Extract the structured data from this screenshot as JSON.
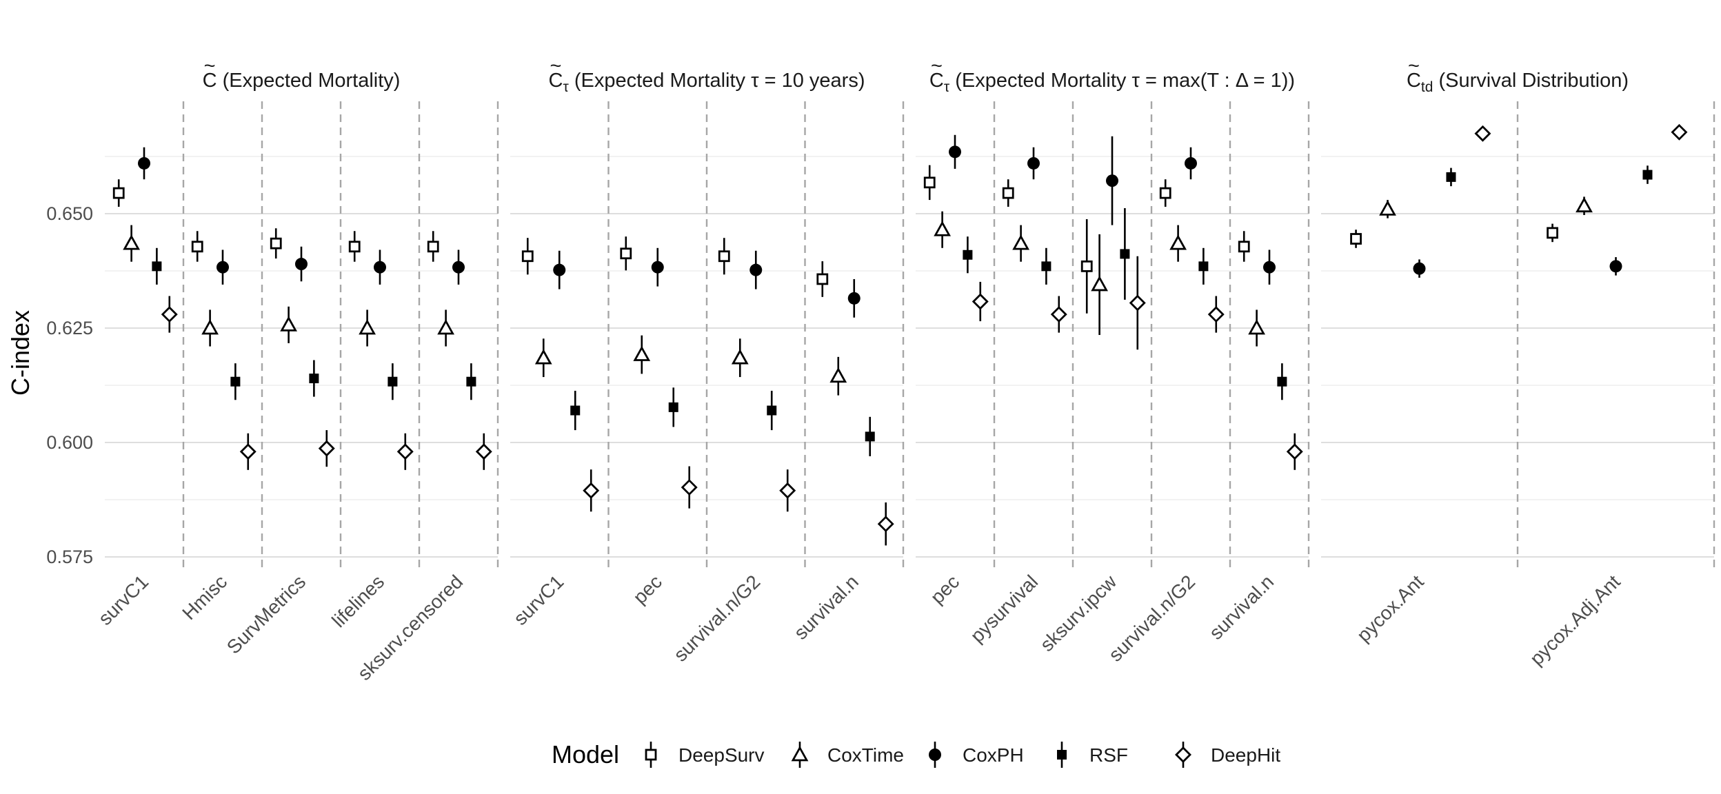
{
  "chart_data": {
    "type": "scatter",
    "ylabel": "C-index",
    "ylim": [
      0.572,
      0.672
    ],
    "yticks": [
      0.575,
      0.6,
      0.625,
      0.65
    ],
    "ytick_labels": [
      "0.575",
      "0.600",
      "0.625",
      "0.650"
    ],
    "grid": true,
    "legend": {
      "title": "Model",
      "position": "bottom",
      "entries": [
        "DeepSurv",
        "CoxTime",
        "CoxPH",
        "RSF",
        "DeepHit"
      ]
    },
    "models": [
      {
        "name": "DeepSurv",
        "marker": "square-open"
      },
      {
        "name": "CoxTime",
        "marker": "triangle-open"
      },
      {
        "name": "CoxPH",
        "marker": "circle-filled"
      },
      {
        "name": "RSF",
        "marker": "square-filled"
      },
      {
        "name": "DeepHit",
        "marker": "diamond-open"
      }
    ],
    "facets": [
      {
        "title_main": "C",
        "title_sub": "",
        "title_rest": " (Expected Mortality)",
        "groups": [
          {
            "label": "survC1",
            "points": [
              {
                "model": "DeepSurv",
                "y": 0.6545,
                "lo": 0.6515,
                "hi": 0.6575
              },
              {
                "model": "CoxTime",
                "y": 0.6435,
                "lo": 0.6395,
                "hi": 0.6475
              },
              {
                "model": "CoxPH",
                "y": 0.661,
                "lo": 0.6575,
                "hi": 0.6645
              },
              {
                "model": "RSF",
                "y": 0.6385,
                "lo": 0.6345,
                "hi": 0.6425
              },
              {
                "model": "DeepHit",
                "y": 0.628,
                "lo": 0.624,
                "hi": 0.632
              }
            ]
          },
          {
            "label": "Hmisc",
            "points": [
              {
                "model": "DeepSurv",
                "y": 0.6428,
                "lo": 0.6395,
                "hi": 0.6462
              },
              {
                "model": "CoxTime",
                "y": 0.625,
                "lo": 0.621,
                "hi": 0.629
              },
              {
                "model": "CoxPH",
                "y": 0.6383,
                "lo": 0.6345,
                "hi": 0.6421
              },
              {
                "model": "RSF",
                "y": 0.6133,
                "lo": 0.6093,
                "hi": 0.6173
              },
              {
                "model": "DeepHit",
                "y": 0.598,
                "lo": 0.594,
                "hi": 0.602
              }
            ]
          },
          {
            "label": "SurvMetrics",
            "points": [
              {
                "model": "DeepSurv",
                "y": 0.6435,
                "lo": 0.6402,
                "hi": 0.6468
              },
              {
                "model": "CoxTime",
                "y": 0.6257,
                "lo": 0.6217,
                "hi": 0.6297
              },
              {
                "model": "CoxPH",
                "y": 0.639,
                "lo": 0.6352,
                "hi": 0.6428
              },
              {
                "model": "RSF",
                "y": 0.614,
                "lo": 0.61,
                "hi": 0.618
              },
              {
                "model": "DeepHit",
                "y": 0.5987,
                "lo": 0.5947,
                "hi": 0.6027
              }
            ]
          },
          {
            "label": "lifelines",
            "points": [
              {
                "model": "DeepSurv",
                "y": 0.6428,
                "lo": 0.6395,
                "hi": 0.6462
              },
              {
                "model": "CoxTime",
                "y": 0.625,
                "lo": 0.621,
                "hi": 0.629
              },
              {
                "model": "CoxPH",
                "y": 0.6383,
                "lo": 0.6345,
                "hi": 0.6421
              },
              {
                "model": "RSF",
                "y": 0.6133,
                "lo": 0.6093,
                "hi": 0.6173
              },
              {
                "model": "DeepHit",
                "y": 0.598,
                "lo": 0.594,
                "hi": 0.602
              }
            ]
          },
          {
            "label": "sksurv.censored",
            "points": [
              {
                "model": "DeepSurv",
                "y": 0.6428,
                "lo": 0.6395,
                "hi": 0.6462
              },
              {
                "model": "CoxTime",
                "y": 0.625,
                "lo": 0.621,
                "hi": 0.629
              },
              {
                "model": "CoxPH",
                "y": 0.6383,
                "lo": 0.6345,
                "hi": 0.6421
              },
              {
                "model": "RSF",
                "y": 0.6133,
                "lo": 0.6093,
                "hi": 0.6173
              },
              {
                "model": "DeepHit",
                "y": 0.598,
                "lo": 0.594,
                "hi": 0.602
              }
            ]
          }
        ]
      },
      {
        "title_main": "C",
        "title_sub": "τ",
        "title_rest": " (Expected Mortality τ = 10 years)",
        "groups": [
          {
            "label": "survC1",
            "points": [
              {
                "model": "DeepSurv",
                "y": 0.6407,
                "lo": 0.6367,
                "hi": 0.6447
              },
              {
                "model": "CoxTime",
                "y": 0.6185,
                "lo": 0.6143,
                "hi": 0.6227
              },
              {
                "model": "CoxPH",
                "y": 0.6377,
                "lo": 0.6335,
                "hi": 0.6419
              },
              {
                "model": "RSF",
                "y": 0.607,
                "lo": 0.6027,
                "hi": 0.6113
              },
              {
                "model": "DeepHit",
                "y": 0.5895,
                "lo": 0.5849,
                "hi": 0.5941
              }
            ]
          },
          {
            "label": "pec",
            "points": [
              {
                "model": "DeepSurv",
                "y": 0.6413,
                "lo": 0.6376,
                "hi": 0.645
              },
              {
                "model": "CoxTime",
                "y": 0.6192,
                "lo": 0.615,
                "hi": 0.6234
              },
              {
                "model": "CoxPH",
                "y": 0.6383,
                "lo": 0.6341,
                "hi": 0.6425
              },
              {
                "model": "RSF",
                "y": 0.6077,
                "lo": 0.6034,
                "hi": 0.612
              },
              {
                "model": "DeepHit",
                "y": 0.5902,
                "lo": 0.5856,
                "hi": 0.5948
              }
            ]
          },
          {
            "label": "survival.n/G2",
            "points": [
              {
                "model": "DeepSurv",
                "y": 0.6407,
                "lo": 0.6367,
                "hi": 0.6447
              },
              {
                "model": "CoxTime",
                "y": 0.6185,
                "lo": 0.6143,
                "hi": 0.6227
              },
              {
                "model": "CoxPH",
                "y": 0.6377,
                "lo": 0.6335,
                "hi": 0.6419
              },
              {
                "model": "RSF",
                "y": 0.607,
                "lo": 0.6027,
                "hi": 0.6113
              },
              {
                "model": "DeepHit",
                "y": 0.5895,
                "lo": 0.5849,
                "hi": 0.5941
              }
            ]
          },
          {
            "label": "survival.n",
            "points": [
              {
                "model": "DeepSurv",
                "y": 0.6357,
                "lo": 0.6318,
                "hi": 0.6396
              },
              {
                "model": "CoxTime",
                "y": 0.6145,
                "lo": 0.6103,
                "hi": 0.6187
              },
              {
                "model": "CoxPH",
                "y": 0.6315,
                "lo": 0.6273,
                "hi": 0.6357
              },
              {
                "model": "RSF",
                "y": 0.6013,
                "lo": 0.597,
                "hi": 0.6056
              },
              {
                "model": "DeepHit",
                "y": 0.5822,
                "lo": 0.5775,
                "hi": 0.5869
              }
            ]
          }
        ]
      },
      {
        "title_main": "C",
        "title_sub": "τ",
        "title_rest": " (Expected Mortality τ = max(T :  Δ = 1))",
        "groups": [
          {
            "label": "pec",
            "points": [
              {
                "model": "DeepSurv",
                "y": 0.6568,
                "lo": 0.653,
                "hi": 0.6606
              },
              {
                "model": "CoxTime",
                "y": 0.6465,
                "lo": 0.6425,
                "hi": 0.6505
              },
              {
                "model": "CoxPH",
                "y": 0.6635,
                "lo": 0.6598,
                "hi": 0.6672
              },
              {
                "model": "RSF",
                "y": 0.641,
                "lo": 0.637,
                "hi": 0.645
              },
              {
                "model": "DeepHit",
                "y": 0.6308,
                "lo": 0.6265,
                "hi": 0.6351
              }
            ]
          },
          {
            "label": "pysurvival",
            "points": [
              {
                "model": "DeepSurv",
                "y": 0.6545,
                "lo": 0.6515,
                "hi": 0.6575
              },
              {
                "model": "CoxTime",
                "y": 0.6435,
                "lo": 0.6395,
                "hi": 0.6475
              },
              {
                "model": "CoxPH",
                "y": 0.661,
                "lo": 0.6575,
                "hi": 0.6645
              },
              {
                "model": "RSF",
                "y": 0.6385,
                "lo": 0.6345,
                "hi": 0.6425
              },
              {
                "model": "DeepHit",
                "y": 0.628,
                "lo": 0.624,
                "hi": 0.632
              }
            ]
          },
          {
            "label": "sksurv.ipcw",
            "points": [
              {
                "model": "DeepSurv",
                "y": 0.6385,
                "lo": 0.6282,
                "hi": 0.6488
              },
              {
                "model": "CoxTime",
                "y": 0.6345,
                "lo": 0.6235,
                "hi": 0.6455
              },
              {
                "model": "CoxPH",
                "y": 0.6572,
                "lo": 0.6475,
                "hi": 0.6669
              },
              {
                "model": "RSF",
                "y": 0.6412,
                "lo": 0.6312,
                "hi": 0.6512
              },
              {
                "model": "DeepHit",
                "y": 0.6305,
                "lo": 0.6203,
                "hi": 0.6407
              }
            ]
          },
          {
            "label": "survival.n/G2",
            "points": [
              {
                "model": "DeepSurv",
                "y": 0.6545,
                "lo": 0.6515,
                "hi": 0.6575
              },
              {
                "model": "CoxTime",
                "y": 0.6435,
                "lo": 0.6395,
                "hi": 0.6475
              },
              {
                "model": "CoxPH",
                "y": 0.661,
                "lo": 0.6575,
                "hi": 0.6645
              },
              {
                "model": "RSF",
                "y": 0.6385,
                "lo": 0.6345,
                "hi": 0.6425
              },
              {
                "model": "DeepHit",
                "y": 0.628,
                "lo": 0.624,
                "hi": 0.632
              }
            ]
          },
          {
            "label": "survival.n",
            "points": [
              {
                "model": "DeepSurv",
                "y": 0.6428,
                "lo": 0.6395,
                "hi": 0.6462
              },
              {
                "model": "CoxTime",
                "y": 0.625,
                "lo": 0.621,
                "hi": 0.629
              },
              {
                "model": "CoxPH",
                "y": 0.6383,
                "lo": 0.6345,
                "hi": 0.6421
              },
              {
                "model": "RSF",
                "y": 0.6133,
                "lo": 0.6093,
                "hi": 0.6173
              },
              {
                "model": "DeepHit",
                "y": 0.598,
                "lo": 0.594,
                "hi": 0.602
              }
            ]
          }
        ]
      },
      {
        "title_main": "C",
        "title_sub": "td",
        "title_rest": " (Survival Distribution)",
        "groups": [
          {
            "label": "pycox.Ant",
            "points": [
              {
                "model": "DeepSurv",
                "y": 0.6445,
                "lo": 0.6425,
                "hi": 0.6465
              },
              {
                "model": "CoxTime",
                "y": 0.651,
                "lo": 0.649,
                "hi": 0.653
              },
              {
                "model": "CoxPH",
                "y": 0.638,
                "lo": 0.636,
                "hi": 0.64
              },
              {
                "model": "RSF",
                "y": 0.658,
                "lo": 0.656,
                "hi": 0.66
              },
              {
                "model": "DeepHit",
                "y": 0.6675,
                "lo": 0.6662,
                "hi": 0.6688
              }
            ]
          },
          {
            "label": "pycox.Adj.Ant",
            "points": [
              {
                "model": "DeepSurv",
                "y": 0.6458,
                "lo": 0.6438,
                "hi": 0.6478
              },
              {
                "model": "CoxTime",
                "y": 0.6517,
                "lo": 0.6497,
                "hi": 0.6537
              },
              {
                "model": "CoxPH",
                "y": 0.6385,
                "lo": 0.6365,
                "hi": 0.6405
              },
              {
                "model": "RSF",
                "y": 0.6585,
                "lo": 0.6565,
                "hi": 0.6605
              },
              {
                "model": "DeepHit",
                "y": 0.6678,
                "lo": 0.6665,
                "hi": 0.6691
              }
            ]
          }
        ]
      }
    ]
  }
}
